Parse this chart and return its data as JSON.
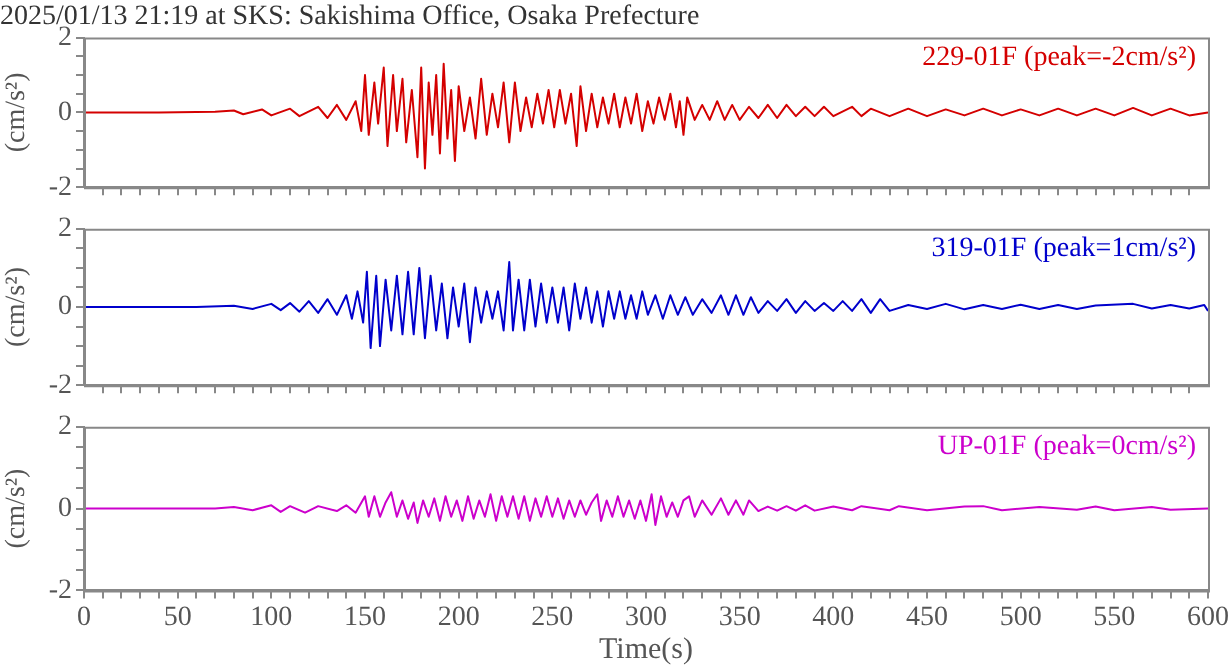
{
  "chart_data": [
    {
      "type": "line",
      "title": "2025/01/13 21:19 at SKS: Sakishima Office, Osaka Prefecture",
      "ylabel": "(cm/s²)",
      "xlim": [
        0,
        600
      ],
      "xticks": [
        {
          "value": 10,
          "label": null
        },
        {
          "value": 20,
          "label": null
        },
        {
          "value": 30,
          "label": null
        },
        {
          "value": 40,
          "label": null
        },
        {
          "value": 50,
          "label": null
        },
        {
          "value": 60,
          "label": null
        },
        {
          "value": 70,
          "label": null
        },
        {
          "value": 80,
          "label": null
        },
        {
          "value": 90,
          "label": null
        },
        {
          "value": 100,
          "label": null
        },
        {
          "value": 110,
          "label": null
        },
        {
          "value": 120,
          "label": null
        },
        {
          "value": 130,
          "label": null
        },
        {
          "value": 140,
          "label": null
        },
        {
          "value": 150,
          "label": null
        },
        {
          "value": 160,
          "label": null
        },
        {
          "value": 170,
          "label": null
        },
        {
          "value": 180,
          "label": null
        },
        {
          "value": 190,
          "label": null
        },
        {
          "value": 200,
          "label": null
        },
        {
          "value": 210,
          "label": null
        },
        {
          "value": 220,
          "label": null
        },
        {
          "value": 230,
          "label": null
        },
        {
          "value": 240,
          "label": null
        },
        {
          "value": 250,
          "label": null
        },
        {
          "value": 260,
          "label": null
        },
        {
          "value": 270,
          "label": null
        },
        {
          "value": 280,
          "label": null
        },
        {
          "value": 290,
          "label": null
        },
        {
          "value": 300,
          "label": null
        },
        {
          "value": 310,
          "label": null
        },
        {
          "value": 320,
          "label": null
        },
        {
          "value": 330,
          "label": null
        },
        {
          "value": 340,
          "label": null
        },
        {
          "value": 350,
          "label": null
        },
        {
          "value": 360,
          "label": null
        },
        {
          "value": 370,
          "label": null
        },
        {
          "value": 380,
          "label": null
        },
        {
          "value": 390,
          "label": null
        },
        {
          "value": 400,
          "label": null
        },
        {
          "value": 410,
          "label": null
        },
        {
          "value": 420,
          "label": null
        },
        {
          "value": 430,
          "label": null
        },
        {
          "value": 440,
          "label": null
        },
        {
          "value": 450,
          "label": null
        },
        {
          "value": 460,
          "label": null
        },
        {
          "value": 470,
          "label": null
        },
        {
          "value": 480,
          "label": null
        },
        {
          "value": 490,
          "label": null
        },
        {
          "value": 500,
          "label": null
        },
        {
          "value": 510,
          "label": null
        },
        {
          "value": 520,
          "label": null
        },
        {
          "value": 530,
          "label": null
        },
        {
          "value": 540,
          "label": null
        },
        {
          "value": 550,
          "label": null
        },
        {
          "value": 560,
          "label": null
        },
        {
          "value": 570,
          "label": null
        },
        {
          "value": 580,
          "label": null
        },
        {
          "value": 590,
          "label": null
        }
      ],
      "ylim": [
        -2,
        2
      ],
      "yticks": [
        -2,
        {
          "value": -1.5,
          "label": null
        },
        {
          "value": -1,
          "label": null
        },
        {
          "value": -0.5,
          "label": null
        },
        0,
        {
          "value": 0.5,
          "label": null
        },
        {
          "value": 1,
          "label": null
        },
        {
          "value": 1.5,
          "label": null
        },
        2
      ],
      "grid": false,
      "tick_labels": "y",
      "series": [
        {
          "name": "229-01F (peak=-2cm/s²)",
          "color": "#d40000",
          "x": [
            0,
            40,
            70,
            80,
            85,
            95,
            100,
            110,
            115,
            125,
            130,
            135,
            140,
            145,
            148,
            150,
            152,
            155,
            157,
            160,
            162,
            165,
            167,
            170,
            172,
            175,
            178,
            180,
            182,
            184,
            186,
            188,
            190,
            192,
            194,
            196,
            198,
            200,
            203,
            206,
            209,
            212,
            215,
            218,
            221,
            224,
            227,
            230,
            233,
            236,
            239,
            242,
            245,
            248,
            251,
            254,
            257,
            260,
            263,
            265,
            268,
            271,
            274,
            277,
            280,
            283,
            286,
            289,
            292,
            295,
            298,
            301,
            304,
            307,
            310,
            313,
            316,
            318,
            320,
            322,
            326,
            330,
            334,
            338,
            342,
            346,
            350,
            355,
            360,
            365,
            370,
            375,
            380,
            385,
            390,
            395,
            400,
            410,
            415,
            420,
            430,
            440,
            450,
            460,
            470,
            480,
            490,
            500,
            510,
            520,
            530,
            540,
            550,
            560,
            570,
            580,
            590,
            600
          ],
          "values": [
            0,
            0,
            0.02,
            0.05,
            -0.05,
            0.08,
            -0.08,
            0.1,
            -0.1,
            0.15,
            -0.15,
            0.2,
            -0.2,
            0.3,
            -0.5,
            1.0,
            -0.6,
            0.8,
            -0.3,
            1.2,
            -0.9,
            1.0,
            -0.5,
            0.9,
            -0.8,
            0.6,
            -1.2,
            1.2,
            -1.5,
            0.8,
            -0.6,
            1.0,
            -1.1,
            1.3,
            -0.7,
            0.6,
            -1.3,
            0.7,
            -0.5,
            0.4,
            -0.7,
            0.9,
            -0.6,
            0.5,
            -0.4,
            0.8,
            -0.8,
            0.8,
            -0.5,
            0.4,
            -0.4,
            0.5,
            -0.3,
            0.6,
            -0.4,
            0.6,
            -0.3,
            0.5,
            -0.9,
            0.7,
            -0.5,
            0.5,
            -0.4,
            0.4,
            -0.3,
            0.5,
            -0.4,
            0.4,
            -0.3,
            0.5,
            -0.5,
            0.3,
            -0.3,
            0.4,
            -0.2,
            0.5,
            -0.4,
            0.3,
            -0.6,
            0.4,
            -0.2,
            0.2,
            -0.2,
            0.3,
            -0.2,
            0.2,
            -0.2,
            0.15,
            -0.15,
            0.2,
            -0.15,
            0.2,
            -0.1,
            0.15,
            -0.1,
            0.15,
            -0.1,
            0.15,
            -0.1,
            0.1,
            -0.1,
            0.1,
            -0.1,
            0.08,
            -0.08,
            0.1,
            -0.08,
            0.08,
            -0.08,
            0.1,
            -0.08,
            0.1,
            -0.08,
            0.12,
            -0.08,
            0.1,
            -0.08,
            0
          ]
        }
      ]
    },
    {
      "type": "line",
      "ylabel": "(cm/s²)",
      "xlim": [
        0,
        600
      ],
      "xticks": [
        {
          "value": 10,
          "label": null
        },
        {
          "value": 20,
          "label": null
        },
        {
          "value": 30,
          "label": null
        },
        {
          "value": 40,
          "label": null
        },
        {
          "value": 50,
          "label": null
        },
        {
          "value": 60,
          "label": null
        },
        {
          "value": 70,
          "label": null
        },
        {
          "value": 80,
          "label": null
        },
        {
          "value": 90,
          "label": null
        },
        {
          "value": 100,
          "label": null
        },
        {
          "value": 110,
          "label": null
        },
        {
          "value": 120,
          "label": null
        },
        {
          "value": 130,
          "label": null
        },
        {
          "value": 140,
          "label": null
        },
        {
          "value": 150,
          "label": null
        },
        {
          "value": 160,
          "label": null
        },
        {
          "value": 170,
          "label": null
        },
        {
          "value": 180,
          "label": null
        },
        {
          "value": 190,
          "label": null
        },
        {
          "value": 200,
          "label": null
        },
        {
          "value": 210,
          "label": null
        },
        {
          "value": 220,
          "label": null
        },
        {
          "value": 230,
          "label": null
        },
        {
          "value": 240,
          "label": null
        },
        {
          "value": 250,
          "label": null
        },
        {
          "value": 260,
          "label": null
        },
        {
          "value": 270,
          "label": null
        },
        {
          "value": 280,
          "label": null
        },
        {
          "value": 290,
          "label": null
        },
        {
          "value": 300,
          "label": null
        },
        {
          "value": 310,
          "label": null
        },
        {
          "value": 320,
          "label": null
        },
        {
          "value": 330,
          "label": null
        },
        {
          "value": 340,
          "label": null
        },
        {
          "value": 350,
          "label": null
        },
        {
          "value": 360,
          "label": null
        },
        {
          "value": 370,
          "label": null
        },
        {
          "value": 380,
          "label": null
        },
        {
          "value": 390,
          "label": null
        },
        {
          "value": 400,
          "label": null
        },
        {
          "value": 410,
          "label": null
        },
        {
          "value": 420,
          "label": null
        },
        {
          "value": 430,
          "label": null
        },
        {
          "value": 440,
          "label": null
        },
        {
          "value": 450,
          "label": null
        },
        {
          "value": 460,
          "label": null
        },
        {
          "value": 470,
          "label": null
        },
        {
          "value": 480,
          "label": null
        },
        {
          "value": 490,
          "label": null
        },
        {
          "value": 500,
          "label": null
        },
        {
          "value": 510,
          "label": null
        },
        {
          "value": 520,
          "label": null
        },
        {
          "value": 530,
          "label": null
        },
        {
          "value": 540,
          "label": null
        },
        {
          "value": 550,
          "label": null
        },
        {
          "value": 560,
          "label": null
        },
        {
          "value": 570,
          "label": null
        },
        {
          "value": 580,
          "label": null
        },
        {
          "value": 590,
          "label": null
        }
      ],
      "ylim": [
        -2,
        2
      ],
      "yticks": [
        -2,
        {
          "value": -1.5,
          "label": null
        },
        {
          "value": -1,
          "label": null
        },
        {
          "value": -0.5,
          "label": null
        },
        0,
        {
          "value": 0.5,
          "label": null
        },
        {
          "value": 1,
          "label": null
        },
        {
          "value": 1.5,
          "label": null
        },
        2
      ],
      "grid": false,
      "tick_labels": "y",
      "series": [
        {
          "name": "319-01F (peak=1cm/s²)",
          "color": "#0000cc",
          "x": [
            0,
            60,
            80,
            90,
            100,
            105,
            110,
            115,
            120,
            125,
            130,
            135,
            140,
            143,
            146,
            149,
            151,
            153,
            156,
            158,
            161,
            164,
            167,
            170,
            173,
            176,
            179,
            182,
            185,
            188,
            191,
            194,
            197,
            200,
            203,
            206,
            209,
            212,
            215,
            218,
            221,
            224,
            227,
            229,
            232,
            235,
            238,
            241,
            244,
            247,
            250,
            253,
            256,
            259,
            262,
            265,
            268,
            271,
            274,
            277,
            280,
            283,
            286,
            289,
            292,
            295,
            298,
            301,
            305,
            309,
            313,
            317,
            321,
            325,
            330,
            335,
            340,
            344,
            348,
            352,
            356,
            360,
            365,
            370,
            375,
            380,
            385,
            390,
            395,
            400,
            405,
            410,
            415,
            420,
            425,
            430,
            440,
            450,
            460,
            470,
            480,
            490,
            500,
            510,
            520,
            530,
            540,
            560,
            570,
            580,
            590,
            598,
            600
          ],
          "values": [
            0,
            0,
            0.03,
            -0.05,
            0.08,
            -0.08,
            0.1,
            -0.12,
            0.15,
            -0.15,
            0.2,
            -0.2,
            0.3,
            -0.3,
            0.4,
            -0.4,
            0.9,
            -1.05,
            0.8,
            -1.0,
            0.7,
            -0.6,
            0.8,
            -0.7,
            0.9,
            -0.7,
            1.0,
            -0.8,
            0.8,
            -0.6,
            0.6,
            -0.8,
            0.5,
            -0.5,
            0.6,
            -0.9,
            0.5,
            -0.4,
            0.4,
            -0.3,
            0.4,
            -0.6,
            1.15,
            -0.6,
            0.7,
            -0.6,
            0.7,
            -0.5,
            0.6,
            -0.4,
            0.5,
            -0.4,
            0.5,
            -0.6,
            0.6,
            -0.3,
            0.5,
            -0.4,
            0.4,
            -0.5,
            0.4,
            -0.3,
            0.4,
            -0.3,
            0.3,
            -0.3,
            0.4,
            -0.2,
            0.3,
            -0.3,
            0.3,
            -0.2,
            0.25,
            -0.2,
            0.2,
            -0.15,
            0.3,
            -0.2,
            0.3,
            -0.2,
            0.25,
            -0.15,
            0.15,
            -0.1,
            0.2,
            -0.15,
            0.15,
            -0.1,
            0.1,
            -0.1,
            0.15,
            -0.1,
            0.2,
            -0.15,
            0.2,
            -0.1,
            0.05,
            -0.05,
            0.08,
            -0.06,
            0.05,
            -0.05,
            0.06,
            -0.05,
            0.05,
            -0.05,
            0.04,
            0.08,
            -0.04,
            0.05,
            -0.04,
            0.05,
            -0.1
          ]
        }
      ]
    },
    {
      "type": "line",
      "ylabel": "(cm/s²)",
      "xlabel": "Time(s)",
      "xlim": [
        0,
        600
      ],
      "xticks": [
        0,
        {
          "value": 10,
          "label": null
        },
        {
          "value": 20,
          "label": null
        },
        {
          "value": 30,
          "label": null
        },
        {
          "value": 40,
          "label": null
        },
        50,
        {
          "value": 60,
          "label": null
        },
        {
          "value": 70,
          "label": null
        },
        {
          "value": 80,
          "label": null
        },
        {
          "value": 90,
          "label": null
        },
        100,
        {
          "value": 110,
          "label": null
        },
        {
          "value": 120,
          "label": null
        },
        {
          "value": 130,
          "label": null
        },
        {
          "value": 140,
          "label": null
        },
        150,
        {
          "value": 160,
          "label": null
        },
        {
          "value": 170,
          "label": null
        },
        {
          "value": 180,
          "label": null
        },
        {
          "value": 190,
          "label": null
        },
        200,
        {
          "value": 210,
          "label": null
        },
        {
          "value": 220,
          "label": null
        },
        {
          "value": 230,
          "label": null
        },
        {
          "value": 240,
          "label": null
        },
        250,
        {
          "value": 260,
          "label": null
        },
        {
          "value": 270,
          "label": null
        },
        {
          "value": 280,
          "label": null
        },
        {
          "value": 290,
          "label": null
        },
        300,
        {
          "value": 310,
          "label": null
        },
        {
          "value": 320,
          "label": null
        },
        {
          "value": 330,
          "label": null
        },
        {
          "value": 340,
          "label": null
        },
        350,
        {
          "value": 360,
          "label": null
        },
        {
          "value": 370,
          "label": null
        },
        {
          "value": 380,
          "label": null
        },
        {
          "value": 390,
          "label": null
        },
        400,
        {
          "value": 410,
          "label": null
        },
        {
          "value": 420,
          "label": null
        },
        {
          "value": 430,
          "label": null
        },
        {
          "value": 440,
          "label": null
        },
        450,
        {
          "value": 460,
          "label": null
        },
        {
          "value": 470,
          "label": null
        },
        {
          "value": 480,
          "label": null
        },
        {
          "value": 490,
          "label": null
        },
        500,
        {
          "value": 510,
          "label": null
        },
        {
          "value": 520,
          "label": null
        },
        {
          "value": 530,
          "label": null
        },
        {
          "value": 540,
          "label": null
        },
        550,
        {
          "value": 560,
          "label": null
        },
        {
          "value": 570,
          "label": null
        },
        {
          "value": 580,
          "label": null
        },
        {
          "value": 590,
          "label": null
        },
        600
      ],
      "ylim": [
        -2,
        2
      ],
      "yticks": [
        -2,
        {
          "value": -1.5,
          "label": null
        },
        {
          "value": -1,
          "label": null
        },
        {
          "value": -0.5,
          "label": null
        },
        0,
        {
          "value": 0.5,
          "label": null
        },
        {
          "value": 1,
          "label": null
        },
        {
          "value": 1.5,
          "label": null
        },
        2
      ],
      "grid": false,
      "series": [
        {
          "name": "UP-01F (peak=0cm/s²)",
          "color": "#cc00cc",
          "x": [
            0,
            70,
            80,
            90,
            100,
            105,
            110,
            118,
            125,
            135,
            140,
            145,
            150,
            152,
            155,
            158,
            161,
            164,
            167,
            170,
            173,
            176,
            178,
            181,
            184,
            187,
            190,
            193,
            196,
            199,
            202,
            205,
            208,
            211,
            214,
            217,
            220,
            223,
            226,
            229,
            232,
            235,
            238,
            241,
            244,
            247,
            250,
            253,
            256,
            259,
            262,
            265,
            268,
            271,
            274,
            276,
            279,
            282,
            285,
            288,
            291,
            294,
            297,
            300,
            303,
            305,
            308,
            311,
            314,
            317,
            320,
            323,
            326,
            330,
            335,
            340,
            344,
            348,
            352,
            355,
            360,
            365,
            370,
            375,
            380,
            385,
            390,
            400,
            410,
            415,
            430,
            435,
            450,
            470,
            480,
            490,
            510,
            530,
            540,
            550,
            570,
            580,
            600
          ],
          "values": [
            0,
            0,
            0.04,
            -0.04,
            0.08,
            -0.08,
            0.06,
            -0.1,
            0.06,
            -0.06,
            0.08,
            -0.1,
            0.3,
            -0.2,
            0.3,
            -0.2,
            0.15,
            0.4,
            -0.2,
            0.2,
            -0.25,
            0.15,
            -0.35,
            0.2,
            -0.2,
            0.25,
            -0.3,
            0.3,
            -0.2,
            0.2,
            -0.3,
            0.3,
            -0.25,
            0.2,
            -0.2,
            0.35,
            -0.3,
            0.3,
            -0.2,
            0.3,
            -0.25,
            0.3,
            -0.3,
            0.25,
            -0.2,
            0.3,
            -0.2,
            0.25,
            -0.25,
            0.2,
            -0.2,
            0.2,
            -0.15,
            0.15,
            0.35,
            -0.3,
            0.2,
            -0.2,
            0.3,
            -0.2,
            0.2,
            -0.25,
            0.2,
            -0.3,
            0.35,
            -0.4,
            0.3,
            -0.2,
            0.15,
            -0.2,
            0.2,
            0.3,
            -0.2,
            0.2,
            -0.15,
            0.25,
            -0.15,
            0.2,
            -0.15,
            0.2,
            -0.06,
            0.05,
            -0.05,
            0.06,
            -0.05,
            0.08,
            -0.05,
            0.05,
            -0.04,
            0.06,
            -0.04,
            0.06,
            -0.04,
            0.05,
            0.06,
            -0.04,
            0.04,
            -0.03,
            0.05,
            -0.04,
            0.04,
            -0.03,
            0
          ]
        }
      ]
    }
  ]
}
